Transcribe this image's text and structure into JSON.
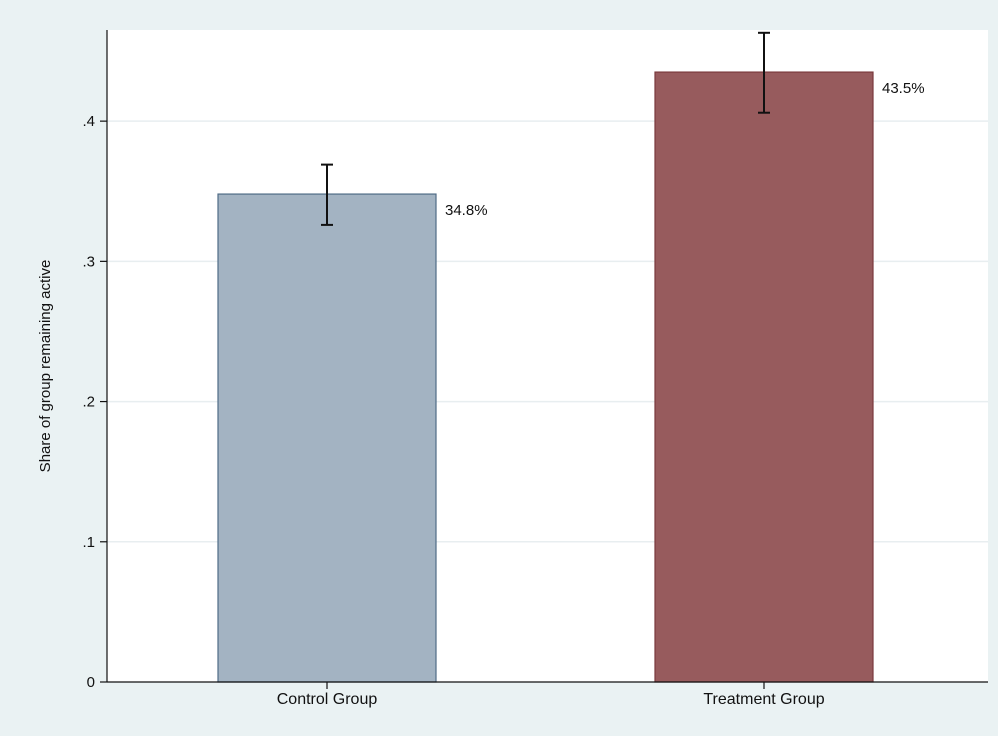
{
  "chart_data": {
    "type": "bar",
    "categories": [
      "Control Group",
      "Treatment Group"
    ],
    "values": [
      0.348,
      0.435
    ],
    "error_bars": [
      {
        "low": 0.326,
        "high": 0.369
      },
      {
        "low": 0.406,
        "high": 0.463
      }
    ],
    "data_labels": [
      "34.8%",
      "43.5%"
    ],
    "bar_colors": [
      "#a3b3c2",
      "#975b5d"
    ],
    "bar_edge_colors": [
      "#4f6b85",
      "#7a3a3d"
    ],
    "title": "",
    "xlabel": "",
    "ylabel": "Share of group remaining active",
    "ylim": [
      0,
      0.465
    ],
    "yticks": [
      0,
      0.1,
      0.2,
      0.3,
      0.4
    ],
    "ytick_labels": [
      "0",
      ".1",
      ".2",
      ".3",
      ".4"
    ],
    "grid": true,
    "background": "#eaf2f3",
    "plot_background": "#ffffff",
    "grid_color": "#e8eef0",
    "errorbar_color": "#111111"
  }
}
